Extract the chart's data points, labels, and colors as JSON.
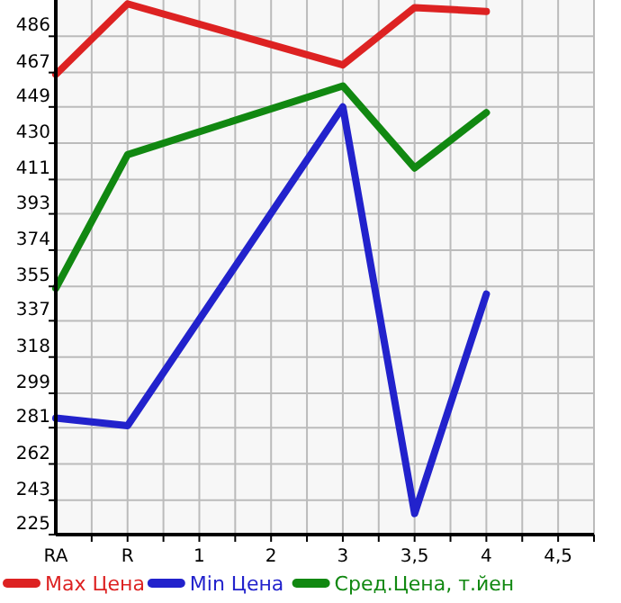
{
  "chart_data": {
    "type": "line",
    "categories": [
      "RA",
      "R",
      "1",
      "2",
      "3",
      "3,5",
      "4",
      "4,5"
    ],
    "series": [
      {
        "name": "Max Цена",
        "color": "#dd2222",
        "values": [
          466,
          503,
          null,
          null,
          471,
          501,
          499,
          null
        ]
      },
      {
        "name": "Min Цена",
        "color": "#2222cc",
        "values": [
          286,
          282,
          null,
          null,
          449,
          236,
          351,
          null
        ]
      },
      {
        "name": "Сред.Цена, т.йен",
        "color": "#118811",
        "values": [
          354,
          424,
          null,
          null,
          460,
          417,
          446,
          null
        ]
      }
    ],
    "ylim": [
      225,
      505
    ],
    "yticks": [
      225,
      243,
      262,
      281,
      299,
      318,
      337,
      355,
      374,
      393,
      411,
      430,
      449,
      467,
      486
    ],
    "grid": true,
    "legend": "bottom",
    "marker": "none",
    "line_style": "solid"
  }
}
